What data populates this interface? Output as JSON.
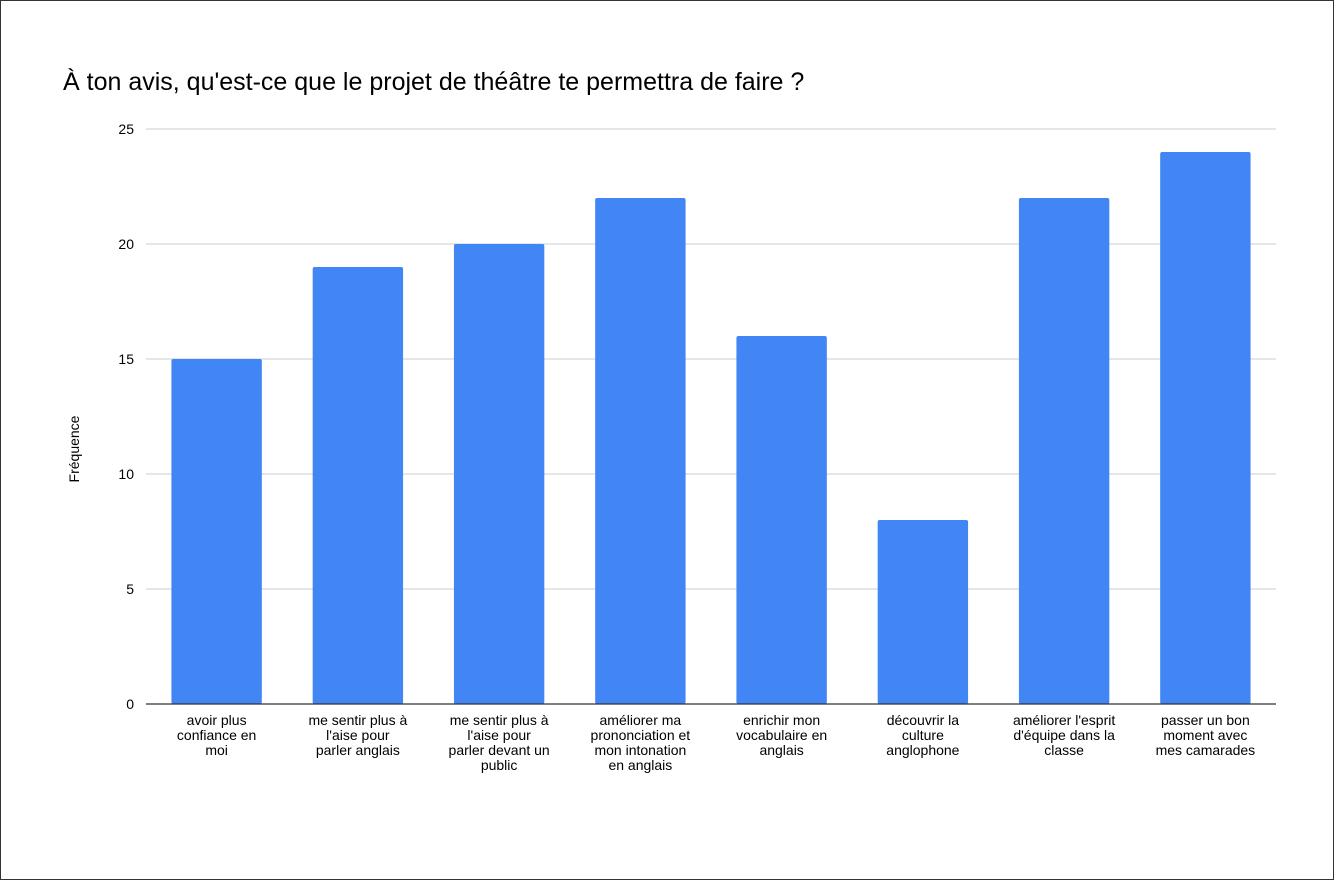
{
  "chart_data": {
    "type": "bar",
    "title": "À ton avis, qu'est-ce que le projet de théâtre te permettra de faire ?",
    "xlabel": "",
    "ylabel": "Fréquence",
    "ylim": [
      0,
      25
    ],
    "yticks": [
      "0",
      "5",
      "10",
      "15",
      "20",
      "25"
    ],
    "grid": true,
    "legend": "none",
    "bar_color": "#4285f4",
    "categories": [
      "avoir plus confiance en moi",
      "me sentir plus à l'aise pour parler anglais",
      "me sentir plus à l'aise pour parler devant un public",
      "améliorer ma prononciation et mon intonation en anglais",
      "enrichir mon vocabulaire en anglais",
      "découvrir la culture anglophone",
      "améliorer l'esprit d'équipe dans la classe",
      "passer un bon moment avec mes camarades"
    ],
    "category_lines": [
      [
        "avoir plus",
        "confiance en",
        "moi"
      ],
      [
        "me sentir plus à",
        "l'aise pour",
        "parler anglais"
      ],
      [
        "me sentir plus à",
        "l'aise pour",
        "parler devant un",
        "public"
      ],
      [
        "améliorer ma",
        "prononciation et",
        "mon intonation",
        "en anglais"
      ],
      [
        "enrichir mon",
        "vocabulaire en",
        "anglais"
      ],
      [
        "découvrir la",
        "culture",
        "anglophone"
      ],
      [
        "améliorer l'esprit",
        "d'équipe dans la",
        "classe"
      ],
      [
        "passer un bon",
        "moment avec",
        "mes camarades"
      ]
    ],
    "values": [
      15,
      19,
      20,
      22,
      16,
      8,
      22,
      24
    ]
  }
}
